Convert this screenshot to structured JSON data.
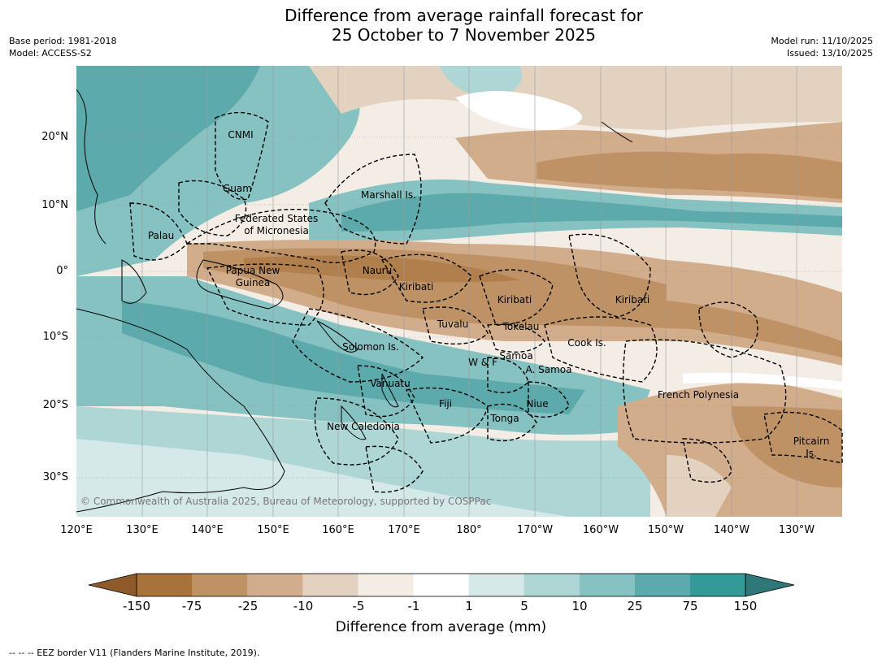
{
  "header": {
    "title_line1": "Difference from average rainfall forecast for",
    "title_line2": "25 October to 7 November 2025",
    "base_period": "Base period: 1981-2018",
    "model": "Model: ACCESS-S2",
    "model_run": "Model run: 11/10/2025",
    "issued": "Issued: 13/10/2025"
  },
  "map": {
    "lat_labels": [
      "20°N",
      "10°N",
      "0°",
      "10°S",
      "20°S",
      "30°S"
    ],
    "lon_labels": [
      "120°E",
      "130°E",
      "140°E",
      "150°E",
      "160°E",
      "170°E",
      "180°",
      "170°W",
      "160°W",
      "150°W",
      "140°W",
      "130°W"
    ],
    "copyright": "© Commonwealth of Australia 2025, Bureau of Meteorology, supported by COSPPac",
    "regions": {
      "cnmi": "CNMI",
      "guam": "Guam",
      "marshall": "Marshall Is.",
      "fsm_1": "Federated States",
      "fsm_2": "of Micronesia",
      "palau": "Palau",
      "png_1": "Papua New",
      "png_2": "Guinea",
      "nauru": "Nauru",
      "kiribati_w": "Kiribati",
      "kiribati_c": "Kiribati",
      "kiribati_e": "Kiribati",
      "tuvalu": "Tuvalu",
      "tokelau": "Tokelau",
      "cook": "Cook Is.",
      "solomon": "Solomon Is.",
      "samoa": "Samoa",
      "wf": "W & F",
      "asamoa": "A. Samoa",
      "vanuatu": "Vanuatu",
      "fiji": "Fiji",
      "niue": "Niue",
      "tonga": "Tonga",
      "newcal": "New Caledonia",
      "frpoly": "French Polynesia",
      "pitcairn_1": "Pitcairn",
      "pitcairn_2": "Is."
    }
  },
  "colorbar": {
    "ticks": [
      "-150",
      "-75",
      "-25",
      "-10",
      "-5",
      "-1",
      "1",
      "5",
      "10",
      "25",
      "75",
      "150"
    ],
    "colors": [
      "#8f5a29",
      "#a8733b",
      "#bf9265",
      "#d2ad8b",
      "#e4d2c1",
      "#f3ede6",
      "#ffffff",
      "#d5e9e8",
      "#aed6d5",
      "#86c2c1",
      "#5caaab",
      "#349a98",
      "#2e7878"
    ],
    "title": "Difference from average (mm)"
  },
  "footnote": "--  --  -- EEZ border V11 (Flanders Marine Institute, 2019)."
}
